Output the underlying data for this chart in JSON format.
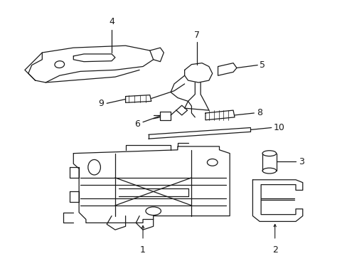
{
  "bg_color": "#ffffff",
  "line_color": "#1a1a1a",
  "fig_width": 4.89,
  "fig_height": 3.6,
  "dpi": 100,
  "label_fontsize": 9,
  "lw": 0.9
}
